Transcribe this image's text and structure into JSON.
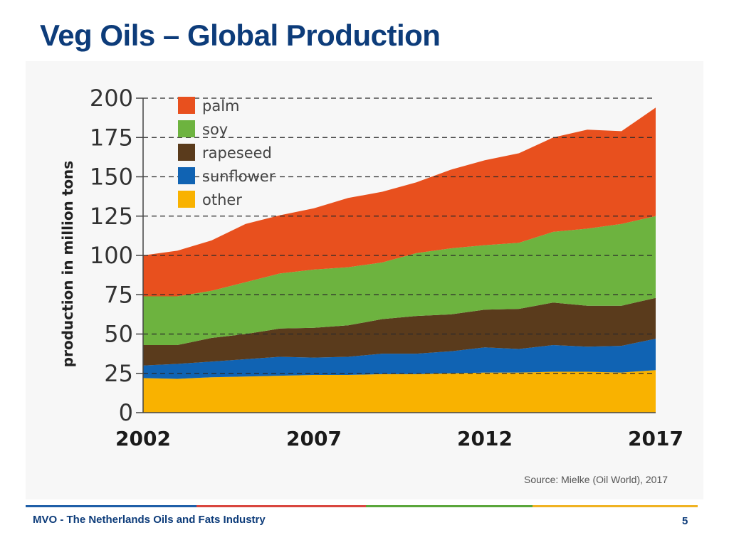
{
  "slide": {
    "title": "Veg Oils – Global Production",
    "footer": "MVO - The Netherlands Oils and Fats Industry",
    "page_number": "5",
    "source": "Source: Mielke (Oil World), 2017",
    "footer_colors": [
      "#1f5fa8",
      "#d9463f",
      "#5aa63b",
      "#f0b323"
    ]
  },
  "chart_data": {
    "type": "area",
    "stacked": true,
    "title": "",
    "ylabel": "production in million tons",
    "xlabel": "",
    "ylim": [
      0,
      200
    ],
    "y_ticks": [
      0,
      25,
      50,
      75,
      100,
      125,
      150,
      175,
      200
    ],
    "x_ticks": [
      2002,
      2007,
      2012,
      2017
    ],
    "x_tick_labels": [
      "2002",
      "2007",
      "2012",
      "2017"
    ],
    "x": [
      2002,
      2003,
      2004,
      2005,
      2006,
      2007,
      2008,
      2009,
      2010,
      2011,
      2012,
      2013,
      2014,
      2015,
      2016,
      2017
    ],
    "legend_position": "top-left",
    "grid": "dashed horizontal",
    "series": [
      {
        "name": "other",
        "color": "#f9b200",
        "values": [
          22,
          21.5,
          22.5,
          23,
          23.5,
          24,
          24,
          24.5,
          24.5,
          25,
          25.5,
          25.5,
          26,
          26,
          25.5,
          27
        ]
      },
      {
        "name": "sunflower",
        "color": "#1063b3",
        "values": [
          8,
          9.5,
          10,
          11,
          12,
          11,
          11.5,
          13,
          13,
          14,
          16,
          15,
          17,
          16,
          17,
          20
        ]
      },
      {
        "name": "rapeseed",
        "color": "#5a3b1c",
        "values": [
          13,
          12,
          15,
          16,
          18,
          19,
          20,
          22,
          24,
          23.5,
          24,
          25.5,
          27,
          26,
          25.5,
          26
        ]
      },
      {
        "name": "soy",
        "color": "#6db33f",
        "values": [
          31,
          31,
          30,
          33,
          35,
          37,
          37,
          36,
          40,
          42,
          41,
          42,
          45,
          49,
          52,
          52
        ]
      },
      {
        "name": "palm",
        "color": "#e8501e",
        "values": [
          26,
          29,
          32,
          37,
          37,
          39,
          44,
          45,
          45,
          50,
          54,
          57,
          60,
          63,
          59,
          69
        ]
      }
    ],
    "legend_order": [
      "palm",
      "soy",
      "rapeseed",
      "sunflower",
      "other"
    ]
  }
}
